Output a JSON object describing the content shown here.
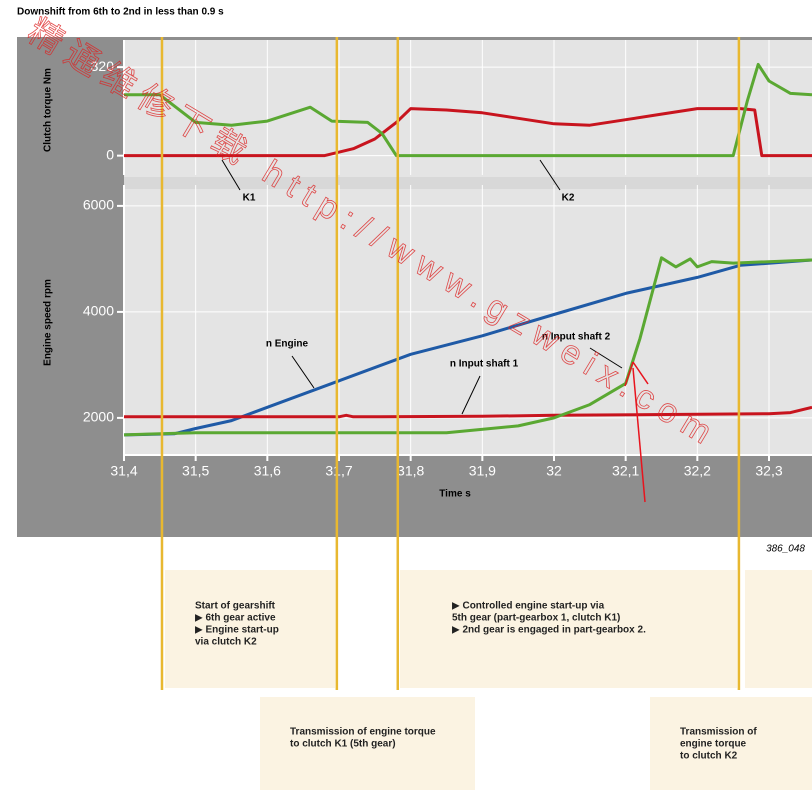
{
  "title": "Downshift from 6th to 2nd in less than 0.9 s",
  "figure_id": "386_048",
  "watermark": "精通维修下载 http://www.gzweix.com",
  "chart_data": [
    {
      "type": "line",
      "ylabel": "Clutch torque Nm",
      "xlim": [
        31.4,
        32.36
      ],
      "ylim": [
        -70,
        400
      ],
      "yticks": [
        320,
        0
      ],
      "grid": true,
      "series": [
        {
          "name": "K1",
          "color": "#c8141e",
          "x": [
            31.4,
            31.68,
            31.72,
            31.75,
            31.78,
            31.8,
            31.85,
            31.9,
            31.95,
            32.0,
            32.05,
            32.1,
            32.15,
            32.2,
            32.26,
            32.28,
            32.29,
            32.36
          ],
          "values": [
            0,
            0,
            25,
            60,
            120,
            170,
            165,
            155,
            135,
            115,
            110,
            130,
            150,
            170,
            170,
            165,
            0,
            0
          ]
        },
        {
          "name": "K2",
          "color": "#5aa832",
          "x": [
            31.4,
            31.45,
            31.5,
            31.55,
            31.6,
            31.66,
            31.69,
            31.74,
            31.76,
            31.78,
            32.25,
            32.27,
            32.285,
            32.3,
            32.33,
            32.36
          ],
          "values": [
            220,
            220,
            120,
            110,
            125,
            175,
            125,
            120,
            80,
            0,
            0,
            200,
            330,
            270,
            225,
            220
          ]
        }
      ]
    },
    {
      "type": "line",
      "ylabel": "Engine speed rpm",
      "xlabel": "Time s",
      "xlim": [
        31.4,
        32.36
      ],
      "ylim": [
        1300,
        6300
      ],
      "yticks": [
        6000,
        4000,
        2000
      ],
      "grid": true,
      "xticks": [
        {
          "value": 31.4,
          "label": "31,4"
        },
        {
          "value": 31.5,
          "label": "31,5"
        },
        {
          "value": 31.6,
          "label": "31,6"
        },
        {
          "value": 31.7,
          "label": "31,7"
        },
        {
          "value": 31.8,
          "label": "31,8"
        },
        {
          "value": 31.9,
          "label": "31,9"
        },
        {
          "value": 32,
          "label": "32"
        },
        {
          "value": 32.1,
          "label": "32,1"
        },
        {
          "value": 32.2,
          "label": "32,2"
        },
        {
          "value": 32.3,
          "label": "32,3"
        }
      ],
      "event_lines": [
        31.453,
        31.697,
        31.782,
        32.258
      ],
      "event_color": "#e8b830",
      "series": [
        {
          "name": "n Engine",
          "color": "#1f5aa6",
          "x": [
            31.4,
            31.47,
            31.5,
            31.55,
            31.6,
            31.7,
            31.8,
            31.9,
            32.0,
            32.1,
            32.2,
            32.26,
            32.36
          ],
          "values": [
            1680,
            1700,
            1800,
            1950,
            2200,
            2700,
            3200,
            3550,
            3950,
            4350,
            4650,
            4880,
            4980
          ]
        },
        {
          "name": "n Input shaft 1",
          "color": "#c8141e",
          "x": [
            31.4,
            31.7,
            31.71,
            31.72,
            31.9,
            32.0,
            32.3,
            32.33,
            32.36
          ],
          "values": [
            2020,
            2020,
            2050,
            2020,
            2030,
            2050,
            2080,
            2100,
            2200
          ]
        },
        {
          "name": "n Input shaft 2",
          "color": "#5aa832",
          "x": [
            31.4,
            31.45,
            31.5,
            31.85,
            31.95,
            32.0,
            32.05,
            32.1,
            32.12,
            32.15,
            32.17,
            32.19,
            32.2,
            32.22,
            32.25,
            32.36
          ],
          "values": [
            1680,
            1700,
            1720,
            1720,
            1850,
            2000,
            2250,
            2650,
            3500,
            5020,
            4850,
            5000,
            4850,
            4950,
            4920,
            4980
          ]
        }
      ]
    }
  ],
  "callouts": [
    {
      "lines": [
        "Start of gearshift",
        "▶ 6th gear active",
        "▶ Engine start-up",
        "   via clutch K2"
      ]
    },
    {
      "lines": [
        "▶ Controlled engine start-up via",
        "   5th gear (part-gearbox 1, clutch K1)",
        "▶ 2nd gear is engaged in part-gearbox 2."
      ]
    },
    {
      "lines": [
        "Transmission of engine torque",
        "to clutch K1 (5th gear)"
      ]
    },
    {
      "lines": [
        "Transmission of",
        "engine torque",
        "to clutch K2"
      ]
    }
  ]
}
